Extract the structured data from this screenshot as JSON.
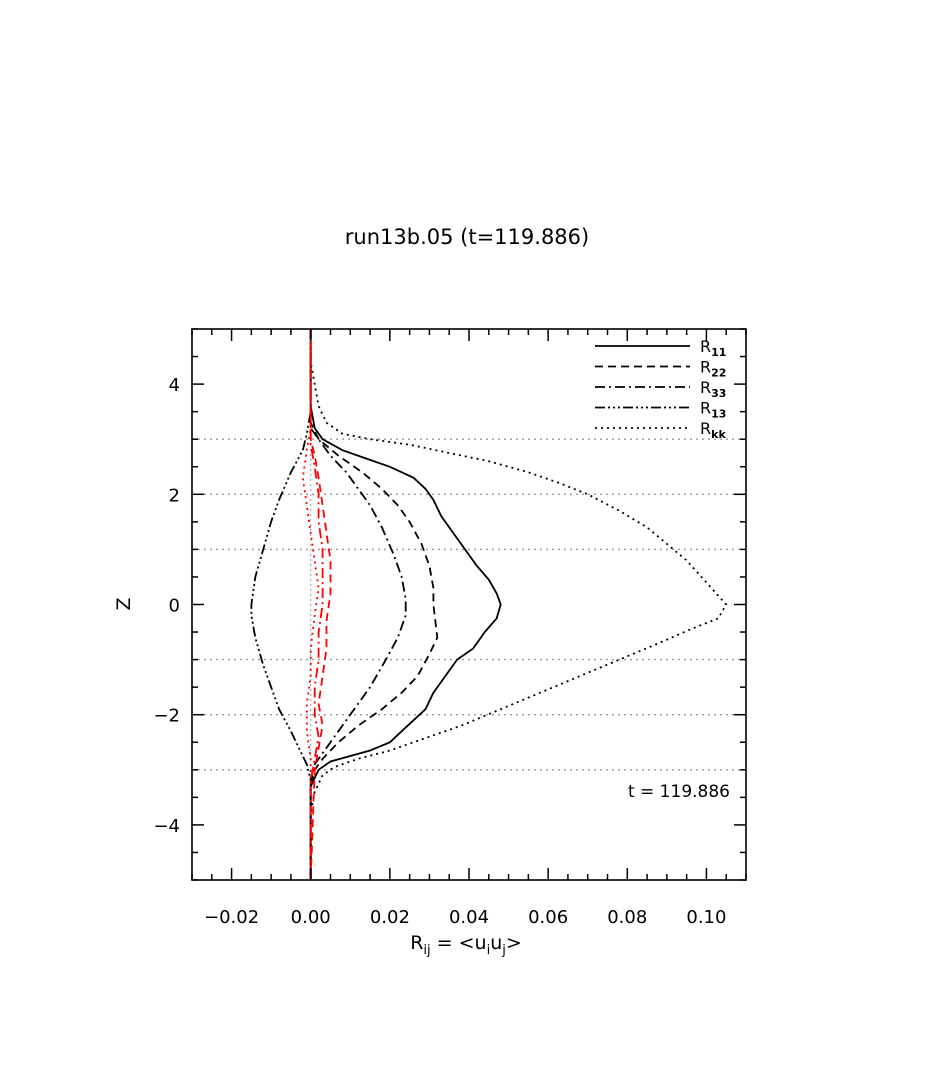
{
  "chart_data": {
    "type": "line",
    "title": "run13b.05 (t=119.886)",
    "xlabel": {
      "base": "R",
      "sub": "ij",
      "eq": " = <u",
      "s1": "i",
      "mid": "u",
      "s2": "j",
      "end": ">"
    },
    "ylabel": "Z",
    "xlim": [
      -0.03,
      0.11
    ],
    "ylim": [
      -5,
      5
    ],
    "xticks": [
      -0.02,
      0.0,
      0.02,
      0.04,
      0.06,
      0.08,
      0.1
    ],
    "xtick_labels": [
      "−0.02",
      "0.00",
      "0.02",
      "0.04",
      "0.06",
      "0.08",
      "0.10"
    ],
    "yticks": [
      -4,
      -2,
      0,
      2,
      4
    ],
    "ytick_labels": [
      "−4",
      "−2",
      "0",
      "2",
      "4"
    ],
    "grid": "dotted horizontal lines at z = ±1, ±2, ±3",
    "hlines": [
      -3,
      -2,
      -1,
      1,
      2,
      3
    ],
    "annotation": "t = 119.886",
    "legend_position": "top-right",
    "legend": [
      {
        "base": "R",
        "sub": "11",
        "dash": "none"
      },
      {
        "base": "R",
        "sub": "22",
        "dash": "8,5"
      },
      {
        "base": "R",
        "sub": "33",
        "dash": "10,4,2,4"
      },
      {
        "base": "R",
        "sub": "13",
        "dash": "10,3,2,3,2,3,2,3"
      },
      {
        "base": "R",
        "sub": "kk",
        "dash": "2,4"
      }
    ],
    "series": [
      {
        "name": "R11",
        "color": "#000000",
        "dash": "none",
        "points": [
          [
            0.0,
            5.0
          ],
          [
            0.0,
            3.6
          ],
          [
            0.001,
            3.2
          ],
          [
            0.003,
            3.0
          ],
          [
            0.008,
            2.8
          ],
          [
            0.014,
            2.65
          ],
          [
            0.02,
            2.5
          ],
          [
            0.026,
            2.3
          ],
          [
            0.029,
            2.1
          ],
          [
            0.031,
            1.9
          ],
          [
            0.033,
            1.6
          ],
          [
            0.036,
            1.3
          ],
          [
            0.039,
            1.0
          ],
          [
            0.042,
            0.7
          ],
          [
            0.045,
            0.45
          ],
          [
            0.047,
            0.2
          ],
          [
            0.048,
            0.0
          ],
          [
            0.047,
            -0.25
          ],
          [
            0.044,
            -0.5
          ],
          [
            0.041,
            -0.8
          ],
          [
            0.037,
            -1.0
          ],
          [
            0.034,
            -1.3
          ],
          [
            0.031,
            -1.6
          ],
          [
            0.029,
            -1.9
          ],
          [
            0.026,
            -2.1
          ],
          [
            0.023,
            -2.3
          ],
          [
            0.02,
            -2.5
          ],
          [
            0.015,
            -2.65
          ],
          [
            0.01,
            -2.75
          ],
          [
            0.005,
            -2.85
          ],
          [
            0.002,
            -3.0
          ],
          [
            0.0,
            -3.3
          ],
          [
            0.0,
            -5.0
          ]
        ]
      },
      {
        "name": "R22",
        "color": "#000000",
        "dash": "8,5",
        "points": [
          [
            0.0,
            5.0
          ],
          [
            0.0,
            3.3
          ],
          [
            0.002,
            3.0
          ],
          [
            0.007,
            2.7
          ],
          [
            0.013,
            2.4
          ],
          [
            0.018,
            2.1
          ],
          [
            0.022,
            1.8
          ],
          [
            0.025,
            1.5
          ],
          [
            0.028,
            1.1
          ],
          [
            0.03,
            0.7
          ],
          [
            0.031,
            0.3
          ],
          [
            0.031,
            0.0
          ],
          [
            0.032,
            -0.6
          ],
          [
            0.03,
            -0.9
          ],
          [
            0.027,
            -1.3
          ],
          [
            0.023,
            -1.6
          ],
          [
            0.018,
            -1.9
          ],
          [
            0.012,
            -2.2
          ],
          [
            0.007,
            -2.5
          ],
          [
            0.003,
            -2.8
          ],
          [
            0.001,
            -3.0
          ],
          [
            0.0,
            -3.3
          ],
          [
            0.0,
            -5.0
          ]
        ]
      },
      {
        "name": "R33",
        "color": "#000000",
        "dash": "10,4,2,4",
        "points": [
          [
            0.0,
            5.0
          ],
          [
            0.0,
            3.2
          ],
          [
            0.002,
            3.0
          ],
          [
            0.005,
            2.7
          ],
          [
            0.009,
            2.4
          ],
          [
            0.012,
            2.1
          ],
          [
            0.015,
            1.8
          ],
          [
            0.018,
            1.4
          ],
          [
            0.021,
            0.9
          ],
          [
            0.023,
            0.5
          ],
          [
            0.024,
            0.1
          ],
          [
            0.024,
            -0.2
          ],
          [
            0.022,
            -0.6
          ],
          [
            0.019,
            -1.0
          ],
          [
            0.015,
            -1.5
          ],
          [
            0.011,
            -1.9
          ],
          [
            0.007,
            -2.3
          ],
          [
            0.004,
            -2.6
          ],
          [
            0.001,
            -2.9
          ],
          [
            0.0,
            -3.2
          ],
          [
            0.0,
            -5.0
          ]
        ]
      },
      {
        "name": "R13",
        "color": "#000000",
        "dash": "10,3,2,3,2,3,2,3",
        "points": [
          [
            0.0,
            5.0
          ],
          [
            0.0,
            3.5
          ],
          [
            -0.001,
            3.1
          ],
          [
            -0.002,
            2.8
          ],
          [
            -0.005,
            2.4
          ],
          [
            -0.008,
            1.9
          ],
          [
            -0.01,
            1.5
          ],
          [
            -0.012,
            1.0
          ],
          [
            -0.014,
            0.5
          ],
          [
            -0.015,
            0.0
          ],
          [
            -0.015,
            -0.2
          ],
          [
            -0.014,
            -0.6
          ],
          [
            -0.012,
            -1.1
          ],
          [
            -0.01,
            -1.5
          ],
          [
            -0.008,
            -1.9
          ],
          [
            -0.005,
            -2.3
          ],
          [
            -0.003,
            -2.6
          ],
          [
            -0.001,
            -2.9
          ],
          [
            0.0,
            -3.2
          ],
          [
            0.0,
            -5.0
          ]
        ]
      },
      {
        "name": "Rkk",
        "color": "#000000",
        "dash": "2,4",
        "points": [
          [
            0.0,
            5.0
          ],
          [
            0.0,
            4.4
          ],
          [
            0.001,
            4.0
          ],
          [
            0.002,
            3.6
          ],
          [
            0.004,
            3.3
          ],
          [
            0.008,
            3.1
          ],
          [
            0.015,
            3.0
          ],
          [
            0.025,
            2.9
          ],
          [
            0.035,
            2.75
          ],
          [
            0.045,
            2.6
          ],
          [
            0.055,
            2.4
          ],
          [
            0.063,
            2.2
          ],
          [
            0.07,
            2.0
          ],
          [
            0.078,
            1.7
          ],
          [
            0.085,
            1.4
          ],
          [
            0.09,
            1.1
          ],
          [
            0.095,
            0.8
          ],
          [
            0.1,
            0.4
          ],
          [
            0.105,
            0.0
          ],
          [
            0.103,
            -0.25
          ],
          [
            0.096,
            -0.45
          ],
          [
            0.088,
            -0.7
          ],
          [
            0.078,
            -1.0
          ],
          [
            0.068,
            -1.3
          ],
          [
            0.058,
            -1.6
          ],
          [
            0.048,
            -1.9
          ],
          [
            0.038,
            -2.2
          ],
          [
            0.028,
            -2.45
          ],
          [
            0.02,
            -2.65
          ],
          [
            0.012,
            -2.8
          ],
          [
            0.006,
            -2.95
          ],
          [
            0.003,
            -3.1
          ],
          [
            0.001,
            -3.4
          ],
          [
            0.0,
            -3.8
          ],
          [
            0.0,
            -5.0
          ]
        ]
      },
      {
        "name": "R11 (red)",
        "color": "#ff0000",
        "dash": "10,4,2,4",
        "points": [
          [
            0.0,
            5.0
          ],
          [
            0.0,
            3.3
          ],
          [
            0.0,
            2.9
          ],
          [
            0.001,
            2.5
          ],
          [
            0.002,
            2.0
          ],
          [
            0.002,
            1.5
          ],
          [
            0.003,
            1.0
          ],
          [
            0.003,
            0.5
          ],
          [
            0.003,
            0.0
          ],
          [
            0.002,
            -0.5
          ],
          [
            0.002,
            -1.0
          ],
          [
            0.001,
            -1.5
          ],
          [
            0.001,
            -2.0
          ],
          [
            0.002,
            -2.4
          ],
          [
            0.001,
            -2.8
          ],
          [
            0.0,
            -3.2
          ],
          [
            0.0,
            -5.0
          ]
        ]
      },
      {
        "name": "R22 (red)",
        "color": "#ff0000",
        "dash": "8,5",
        "points": [
          [
            0.0,
            5.0
          ],
          [
            0.0,
            3.0
          ],
          [
            0.001,
            2.7
          ],
          [
            0.002,
            2.3
          ],
          [
            0.003,
            1.8
          ],
          [
            0.004,
            1.3
          ],
          [
            0.005,
            0.8
          ],
          [
            0.005,
            0.2
          ],
          [
            0.004,
            -0.3
          ],
          [
            0.004,
            -0.8
          ],
          [
            0.003,
            -1.3
          ],
          [
            0.002,
            -1.8
          ],
          [
            0.003,
            -2.2
          ],
          [
            0.002,
            -2.6
          ],
          [
            0.001,
            -3.0
          ],
          [
            0.0,
            -5.0
          ]
        ]
      },
      {
        "name": "R33 (red)",
        "color": "#ff0000",
        "dash": "2,4",
        "points": [
          [
            0.0,
            5.0
          ],
          [
            0.0,
            3.2
          ],
          [
            -0.001,
            2.8
          ],
          [
            -0.002,
            2.3
          ],
          [
            -0.001,
            1.8
          ],
          [
            0.0,
            1.3
          ],
          [
            0.001,
            0.8
          ],
          [
            0.002,
            0.3
          ],
          [
            0.001,
            -0.2
          ],
          [
            0.0,
            -0.8
          ],
          [
            0.0,
            -1.3
          ],
          [
            -0.001,
            -1.8
          ],
          [
            -0.001,
            -2.3
          ],
          [
            0.0,
            -2.8
          ],
          [
            0.0,
            -5.0
          ]
        ]
      }
    ]
  }
}
